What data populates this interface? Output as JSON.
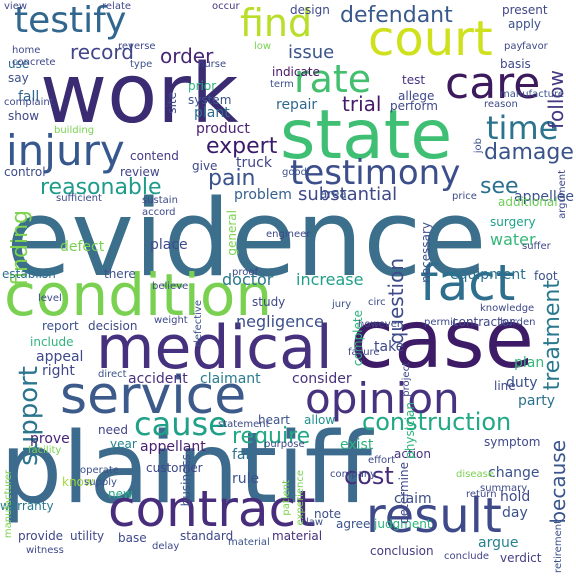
{
  "words": [
    {
      "text": "evidence",
      "color": "#3b6f8c"
    },
    {
      "text": "plaintiff",
      "color": "#3d6b8d"
    },
    {
      "text": "work",
      "color": "#3b2b72"
    },
    {
      "text": "court",
      "color": "#cfe11c"
    },
    {
      "text": "state",
      "color": "#3fbf73"
    },
    {
      "text": "condition",
      "color": "#7ad151"
    },
    {
      "text": "case",
      "color": "#3e1b67"
    },
    {
      "text": "medical",
      "color": "#46317e"
    },
    {
      "text": "fact",
      "color": "#2e6f8e"
    },
    {
      "text": "service",
      "color": "#3c5a8a"
    },
    {
      "text": "opinion",
      "color": "#46327e"
    },
    {
      "text": "contract",
      "color": "#472d7b"
    },
    {
      "text": "result",
      "color": "#3e4a89"
    },
    {
      "text": "injury",
      "color": "#37588c"
    },
    {
      "text": "testify",
      "color": "#31668e"
    },
    {
      "text": "find",
      "color": "#b8de29"
    },
    {
      "text": "care",
      "color": "#3d1a5d"
    },
    {
      "text": "rate",
      "color": "#44bf70"
    },
    {
      "text": "testimony",
      "color": "#3c4f8a"
    },
    {
      "text": "time",
      "color": "#2c738e"
    },
    {
      "text": "defendant",
      "color": "#38598c"
    },
    {
      "text": "cause",
      "color": "#1fa088"
    },
    {
      "text": "support",
      "color": "#2b758e"
    },
    {
      "text": "reasonable",
      "color": "#1e9b8a"
    },
    {
      "text": "damage",
      "color": "#3b538b"
    },
    {
      "text": "expert",
      "color": "#3a1a6a"
    },
    {
      "text": "construction",
      "color": "#22a884"
    },
    {
      "text": "require",
      "color": "#22a884"
    },
    {
      "text": "cost",
      "color": "#472c7a"
    },
    {
      "text": "finding",
      "color": "#7fd34e"
    },
    {
      "text": "question",
      "color": "#3f4c8a"
    },
    {
      "text": "treatment",
      "color": "#2a788e"
    },
    {
      "text": "record",
      "color": "#404688"
    },
    {
      "text": "issue",
      "color": "#3a548c"
    },
    {
      "text": "order",
      "color": "#482677"
    },
    {
      "text": "trial",
      "color": "#48196b"
    },
    {
      "text": "pain",
      "color": "#3a538b"
    },
    {
      "text": "substantial",
      "color": "#3f4889"
    },
    {
      "text": "see",
      "color": "#2d708e"
    },
    {
      "text": "follow",
      "color": "#453781"
    },
    {
      "text": "because",
      "color": "#3a548c"
    },
    {
      "text": "water",
      "color": "#35b779"
    },
    {
      "text": "doctor",
      "color": "#2a778e"
    },
    {
      "text": "increase",
      "color": "#1f9e89"
    },
    {
      "text": "equipment",
      "color": "#2d708e"
    },
    {
      "text": "negligence",
      "color": "#3c4f8a"
    },
    {
      "text": "appellee",
      "color": "#3b518b"
    },
    {
      "text": "additional",
      "color": "#6ece58"
    },
    {
      "text": "surgery",
      "color": "#1fa088"
    },
    {
      "text": "place",
      "color": "#3f4a8a"
    },
    {
      "text": "establish",
      "color": "#2d718e"
    },
    {
      "text": "defect",
      "color": "#7ad151"
    },
    {
      "text": "accident",
      "color": "#46307e"
    },
    {
      "text": "claimant",
      "color": "#287c8e"
    },
    {
      "text": "consider",
      "color": "#46327e"
    },
    {
      "text": "appeal",
      "color": "#3e4989"
    },
    {
      "text": "right",
      "color": "#3f4788"
    },
    {
      "text": "need",
      "color": "#414487"
    },
    {
      "text": "year",
      "color": "#26828e"
    },
    {
      "text": "appellant",
      "color": "#481f70"
    },
    {
      "text": "prove",
      "color": "#482475"
    },
    {
      "text": "fail",
      "color": "#2c728e"
    },
    {
      "text": "heart",
      "color": "#3b528b"
    },
    {
      "text": "allow",
      "color": "#20928c"
    },
    {
      "text": "take",
      "color": "#3e4989"
    },
    {
      "text": "duty",
      "color": "#3a538b"
    },
    {
      "text": "plan",
      "color": "#35b779"
    },
    {
      "text": "party",
      "color": "#2d708e"
    },
    {
      "text": "exist",
      "color": "#2db27d"
    },
    {
      "text": "action",
      "color": "#46337f"
    },
    {
      "text": "change",
      "color": "#3b528b"
    },
    {
      "text": "claim",
      "color": "#3d4e8a"
    },
    {
      "text": "argue",
      "color": "#26828e"
    },
    {
      "text": "hold",
      "color": "#3e4a89"
    },
    {
      "text": "day",
      "color": "#3b518b"
    },
    {
      "text": "note",
      "color": "#3c4f8a"
    },
    {
      "text": "judgment",
      "color": "#2fb47c"
    },
    {
      "text": "agree",
      "color": "#3b528b"
    },
    {
      "text": "rule",
      "color": "#3b528b"
    },
    {
      "text": "new",
      "color": "#22a884"
    },
    {
      "text": "know",
      "color": "#a0da39"
    },
    {
      "text": "material",
      "color": "#472f7d"
    },
    {
      "text": "standard",
      "color": "#3f4788"
    },
    {
      "text": "base",
      "color": "#3e4989"
    },
    {
      "text": "utility",
      "color": "#3f4889"
    },
    {
      "text": "provide",
      "color": "#404688"
    },
    {
      "text": "warranty",
      "color": "#2a788e"
    },
    {
      "text": "conclusion",
      "color": "#443a83"
    },
    {
      "text": "verdict",
      "color": "#433d84"
    },
    {
      "text": "conclude",
      "color": "#414487"
    },
    {
      "text": "product",
      "color": "#482173"
    },
    {
      "text": "contend",
      "color": "#443983"
    },
    {
      "text": "plant",
      "color": "#2e6f8e"
    },
    {
      "text": "repair",
      "color": "#31688e"
    },
    {
      "text": "perform",
      "color": "#3e4a89"
    },
    {
      "text": "truck",
      "color": "#3f4788"
    },
    {
      "text": "give",
      "color": "#3e4989"
    },
    {
      "text": "problem",
      "color": "#355f8d"
    },
    {
      "text": "area",
      "color": "#3b518b"
    },
    {
      "text": "review",
      "color": "#404588"
    },
    {
      "text": "control",
      "color": "#3d4d8a"
    },
    {
      "text": "show",
      "color": "#3f4889"
    },
    {
      "text": "fall",
      "color": "#31678e"
    },
    {
      "text": "say",
      "color": "#3d4e8a"
    },
    {
      "text": "use",
      "color": "#2f6c8e"
    },
    {
      "text": "test",
      "color": "#46317e"
    },
    {
      "text": "allege",
      "color": "#3f4889"
    },
    {
      "text": "indicate",
      "color": "#481668"
    },
    {
      "text": "design",
      "color": "#3e4a89"
    },
    {
      "text": "present",
      "color": "#3f4788"
    },
    {
      "text": "apply",
      "color": "#3b528b"
    },
    {
      "text": "basis",
      "color": "#3e4989"
    },
    {
      "text": "system",
      "color": "#3b528b"
    },
    {
      "text": "prior",
      "color": "#2fb47c"
    },
    {
      "text": "site",
      "color": "#3e4a89"
    },
    {
      "text": "nurse",
      "color": "#3f4889"
    },
    {
      "text": "occur",
      "color": "#46327e"
    },
    {
      "text": "view",
      "color": "#3f4889"
    },
    {
      "text": "relate",
      "color": "#3f4889"
    },
    {
      "text": "home",
      "color": "#3f4889"
    },
    {
      "text": "building",
      "color": "#7ad151"
    },
    {
      "text": "job",
      "color": "#3b528b"
    },
    {
      "text": "good",
      "color": "#3b528b"
    },
    {
      "text": "determine",
      "color": "#3f4889"
    },
    {
      "text": "physician",
      "color": "#2fb47c"
    },
    {
      "text": "necessary",
      "color": "#3b528b"
    },
    {
      "text": "contractor",
      "color": "#3f4889"
    },
    {
      "text": "permit",
      "color": "#3f4889"
    },
    {
      "text": "complete",
      "color": "#2fb47c"
    },
    {
      "text": "project",
      "color": "#3f4889"
    },
    {
      "text": "decision",
      "color": "#3e4989"
    },
    {
      "text": "report",
      "color": "#3b528b"
    },
    {
      "text": "include",
      "color": "#2fb47c"
    },
    {
      "text": "study",
      "color": "#3e4989"
    },
    {
      "text": "jury",
      "color": "#3b528b"
    },
    {
      "text": "foot",
      "color": "#3b528b"
    },
    {
      "text": "line",
      "color": "#3e4989"
    },
    {
      "text": "symptom",
      "color": "#3e4989"
    },
    {
      "text": "customer",
      "color": "#3f4889"
    },
    {
      "text": "business",
      "color": "#3b528b"
    },
    {
      "text": "general",
      "color": "#7ad151"
    },
    {
      "text": "there",
      "color": "#3b528b"
    },
    {
      "text": "operate",
      "color": "#3b528b"
    },
    {
      "text": "facility",
      "color": "#7ad151"
    },
    {
      "text": "manufacturer",
      "color": "#7ad151"
    },
    {
      "text": "direct",
      "color": "#3b528b"
    },
    {
      "text": "defective",
      "color": "#3b528b"
    },
    {
      "text": "material",
      "color": "#3b528b"
    },
    {
      "text": "knowledge",
      "color": "#3e4989"
    },
    {
      "text": "sufficient",
      "color": "#3e4989"
    },
    {
      "text": "sustain",
      "color": "#3e4989"
    },
    {
      "text": "accord",
      "color": "#3e4989"
    },
    {
      "text": "proof",
      "color": "#3e4989"
    },
    {
      "text": "believe",
      "color": "#3e4989"
    },
    {
      "text": "level",
      "color": "#3e4989"
    },
    {
      "text": "burden",
      "color": "#3e4989"
    },
    {
      "text": "however",
      "color": "#3e4989"
    },
    {
      "text": "failure",
      "color": "#3e4989"
    },
    {
      "text": "supply",
      "color": "#3b528b"
    },
    {
      "text": "law",
      "color": "#3b528b"
    },
    {
      "text": "delay",
      "color": "#3e4989"
    },
    {
      "text": "company",
      "color": "#3e4989"
    },
    {
      "text": "patient",
      "color": "#7ad151"
    },
    {
      "text": "experience",
      "color": "#7ad151"
    },
    {
      "text": "purpose",
      "color": "#3e4989"
    },
    {
      "text": "return",
      "color": "#3e4989"
    },
    {
      "text": "disease",
      "color": "#7ad151"
    },
    {
      "text": "retirement",
      "color": "#3b528b"
    },
    {
      "text": "argument",
      "color": "#3e4989"
    },
    {
      "text": "manufacture",
      "color": "#3b528b"
    },
    {
      "text": "favor",
      "color": "#3e4989"
    },
    {
      "text": "pay",
      "color": "#3e4989"
    },
    {
      "text": "term",
      "color": "#3b528b"
    },
    {
      "text": "reason",
      "color": "#3e4989"
    },
    {
      "text": "low",
      "color": "#7ad151"
    },
    {
      "text": "complaint",
      "color": "#3e4989"
    },
    {
      "text": "concrete",
      "color": "#3e4989"
    },
    {
      "text": "reverse",
      "color": "#3e4989"
    },
    {
      "text": "type",
      "color": "#3b528b"
    },
    {
      "text": "weight",
      "color": "#3e4989"
    },
    {
      "text": "witness",
      "color": "#3e4989"
    },
    {
      "text": "engineer",
      "color": "#3e4989"
    },
    {
      "text": "suffer",
      "color": "#3e4989"
    },
    {
      "text": "price",
      "color": "#3e4989"
    },
    {
      "text": "circ",
      "color": "#3e4989"
    },
    {
      "text": "effort",
      "color": "#3e4989"
    },
    {
      "text": "statement",
      "color": "#3e4989"
    },
    {
      "text": "summary",
      "color": "#3e4989"
    },
    {
      "text": "damages",
      "color": "#3e4989"
    }
  ]
}
